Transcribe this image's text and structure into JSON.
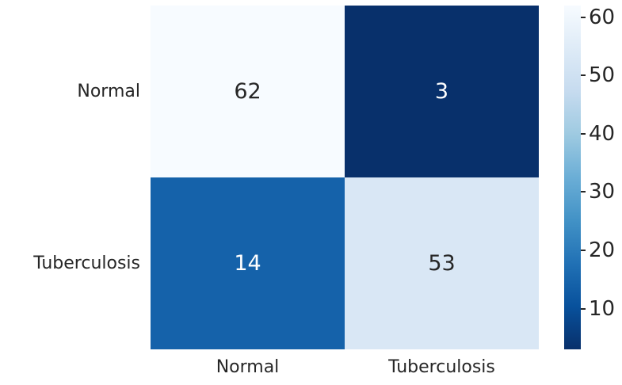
{
  "figure": {
    "background": "#ffffff",
    "text_color": "#262626"
  },
  "chart_data": {
    "type": "heatmap",
    "title": "",
    "xlabel": "",
    "ylabel": "",
    "x_categories": [
      "Normal",
      "Tuberculosis"
    ],
    "y_categories": [
      "Normal",
      "Tuberculosis"
    ],
    "values": [
      [
        62,
        3
      ],
      [
        14,
        53
      ]
    ],
    "vmin": 3,
    "vmax": 62,
    "colormap": "Blues_r",
    "annotated": true,
    "grid": false,
    "legend_position": "right-colorbar",
    "colorbar_ticks": [
      60,
      50,
      40,
      30,
      20,
      10
    ]
  },
  "cells": [
    {
      "row": "Normal",
      "col": "Normal",
      "value": "62",
      "bg": "#f7fbff",
      "fg": "#262626"
    },
    {
      "row": "Normal",
      "col": "Tuberculosis",
      "value": "3",
      "bg": "#08306b",
      "fg": "#ffffff"
    },
    {
      "row": "Tuberculosis",
      "col": "Normal",
      "value": "14",
      "bg": "#1562aa",
      "fg": "#ffffff"
    },
    {
      "row": "Tuberculosis",
      "col": "Tuberculosis",
      "value": "53",
      "bg": "#d9e7f5",
      "fg": "#262626"
    }
  ],
  "colorbar": {
    "tick_labels": [
      "60",
      "50",
      "40",
      "30",
      "20",
      "10"
    ],
    "gradient_stops_top_to_bottom": [
      "#f7fbff",
      "#deebf7",
      "#c6dbef",
      "#9ecae1",
      "#6baed6",
      "#4292c6",
      "#2171b5",
      "#08519c",
      "#08306b"
    ]
  }
}
